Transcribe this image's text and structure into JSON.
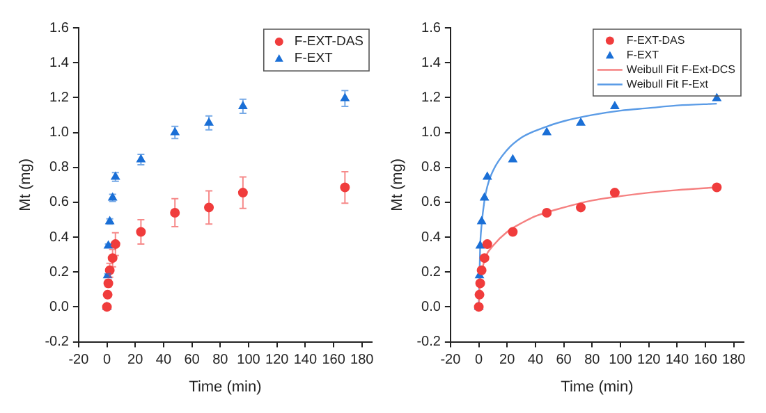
{
  "chart_data": [
    {
      "type": "scatter",
      "xlabel": "Time (min)",
      "ylabel": "Mt (mg)",
      "xlim": [
        -20,
        187
      ],
      "ylim": [
        -0.2,
        1.6
      ],
      "xticks": [
        -20,
        0,
        20,
        40,
        60,
        80,
        100,
        120,
        140,
        160,
        180
      ],
      "yticks": [
        {
          "value": -0.2,
          "label": "-0.2"
        },
        {
          "value": 0,
          "label": "0.0"
        },
        {
          "value": 0.2,
          "label": "0.2"
        },
        {
          "value": 0.4,
          "label": "0.4"
        },
        {
          "value": 0.6,
          "label": "0.6"
        },
        {
          "value": 0.8,
          "label": "0.8"
        },
        {
          "value": 1,
          "label": "1.0"
        },
        {
          "value": 1.2,
          "label": "1.2"
        },
        {
          "value": 1.4,
          "label": "1.4"
        },
        {
          "value": 1.6,
          "label": "1.6"
        }
      ],
      "grid": false,
      "legend": "top right",
      "series": [
        {
          "name": "F-EXT-DAS",
          "marker": "circle",
          "color": "#f03c3c",
          "x": [
            0,
            0.5,
            1,
            2,
            4,
            6,
            24,
            48,
            72,
            96,
            168
          ],
          "values": [
            0,
            0.07,
            0.135,
            0.21,
            0.28,
            0.36,
            0.43,
            0.54,
            0.57,
            0.655,
            0.685
          ],
          "errors": [
            null,
            0.01,
            0.02,
            0.04,
            0.05,
            0.065,
            0.07,
            0.08,
            0.095,
            0.09,
            0.09
          ]
        },
        {
          "name": "F-EXT",
          "marker": "triangle",
          "color": "#1a6fd6",
          "x": [
            0,
            0.5,
            1,
            2,
            4,
            6,
            24,
            48,
            72,
            96,
            168
          ],
          "values": [
            0,
            0.18,
            0.35,
            0.49,
            0.625,
            0.745,
            0.845,
            1.0,
            1.055,
            1.15,
            1.195
          ],
          "errors": [
            null,
            0.01,
            0.01,
            0.015,
            0.02,
            0.025,
            0.03,
            0.035,
            0.04,
            0.04,
            0.045
          ]
        }
      ]
    },
    {
      "type": "scatter",
      "xlabel": "Time (min)",
      "ylabel": "Mt (mg)",
      "xlim": [
        -20,
        187
      ],
      "ylim": [
        -0.2,
        1.6
      ],
      "xticks": [
        -20,
        0,
        20,
        40,
        60,
        80,
        100,
        120,
        140,
        160,
        180
      ],
      "yticks": [
        {
          "value": -0.2,
          "label": "-0.2"
        },
        {
          "value": 0,
          "label": "0.0"
        },
        {
          "value": 0.2,
          "label": "0.2"
        },
        {
          "value": 0.4,
          "label": "0.4"
        },
        {
          "value": 0.6,
          "label": "0.6"
        },
        {
          "value": 0.8,
          "label": "0.8"
        },
        {
          "value": 1,
          "label": "1.0"
        },
        {
          "value": 1.2,
          "label": "1.2"
        },
        {
          "value": 1.4,
          "label": "1.4"
        },
        {
          "value": 1.6,
          "label": "1.6"
        }
      ],
      "grid": false,
      "legend": "top right",
      "series": [
        {
          "name": "F-EXT-DAS",
          "marker": "circle",
          "color": "#f03c3c",
          "x": [
            0,
            0.5,
            1,
            2,
            4,
            6,
            24,
            48,
            72,
            96,
            168
          ],
          "values": [
            0,
            0.07,
            0.135,
            0.21,
            0.28,
            0.36,
            0.43,
            0.54,
            0.57,
            0.655,
            0.685
          ]
        },
        {
          "name": "F-EXT",
          "marker": "triangle",
          "color": "#1a6fd6",
          "x": [
            0,
            0.5,
            1,
            2,
            4,
            6,
            24,
            48,
            72,
            96,
            168
          ],
          "values": [
            0,
            0.18,
            0.35,
            0.49,
            0.625,
            0.745,
            0.845,
            1.0,
            1.055,
            1.15,
            1.195
          ]
        },
        {
          "name": "Weibull Fit F-Ext-DCS",
          "type": "line",
          "color": "#f58080",
          "x": [
            0,
            1,
            2,
            5,
            10,
            20,
            30,
            40,
            60,
            80,
            100,
            120,
            140,
            168
          ],
          "values": [
            0,
            0.15,
            0.2,
            0.29,
            0.35,
            0.43,
            0.48,
            0.52,
            0.57,
            0.61,
            0.635,
            0.655,
            0.67,
            0.685
          ]
        },
        {
          "name": "Weibull Fit F-Ext",
          "type": "line",
          "color": "#5a9be6",
          "x": [
            0,
            1,
            2,
            4,
            6,
            10,
            20,
            30,
            40,
            50,
            60,
            80,
            100,
            120,
            140,
            168
          ],
          "values": [
            0,
            0.35,
            0.47,
            0.61,
            0.69,
            0.78,
            0.9,
            0.97,
            1.01,
            1.04,
            1.065,
            1.1,
            1.125,
            1.14,
            1.155,
            1.165
          ]
        }
      ]
    }
  ]
}
